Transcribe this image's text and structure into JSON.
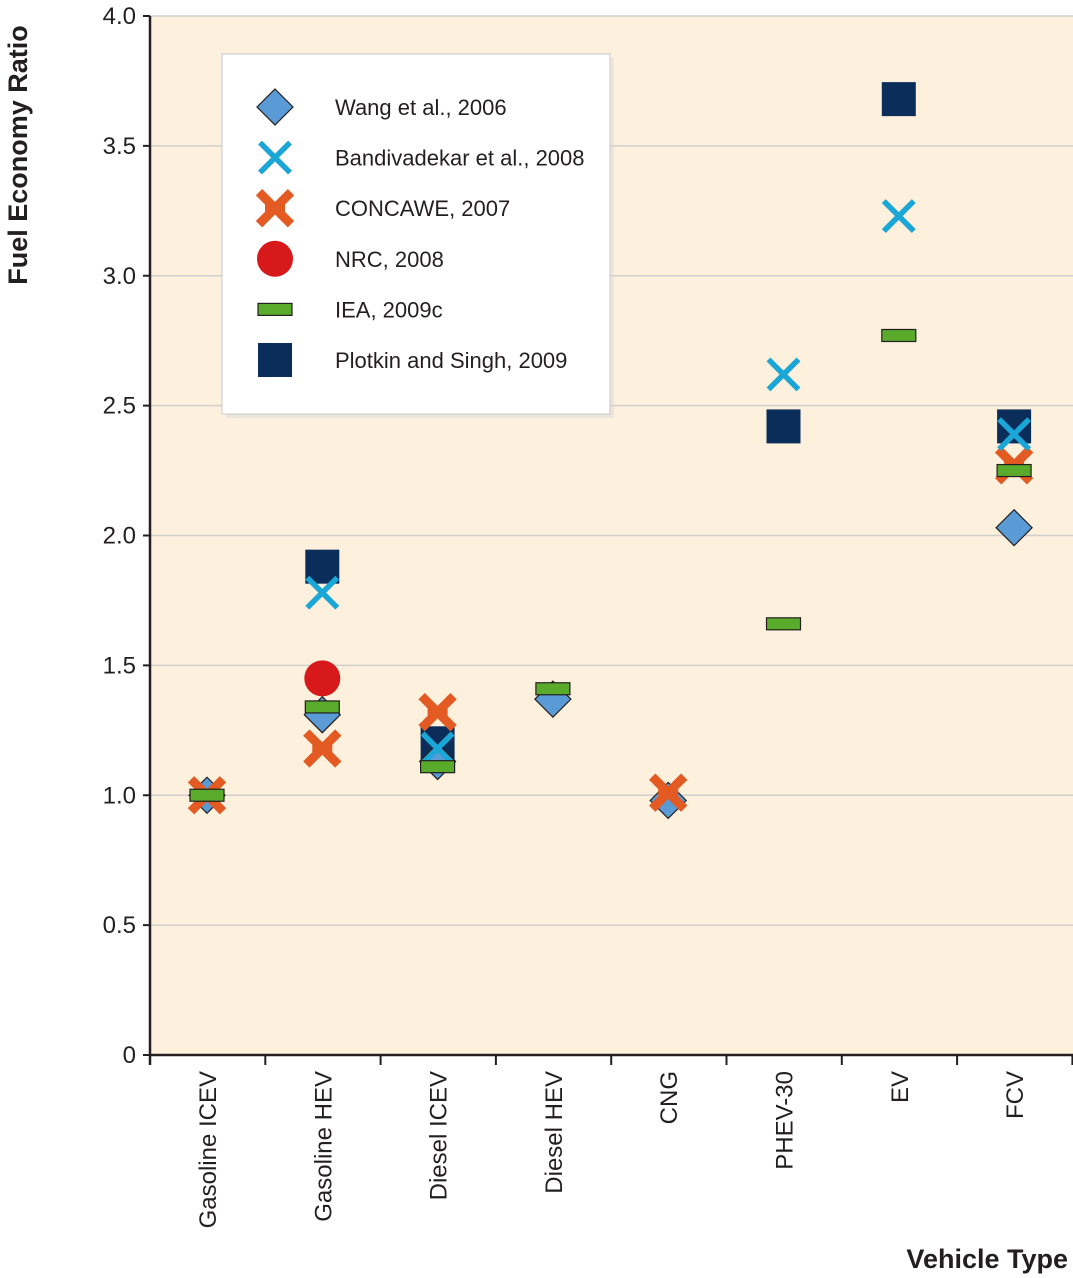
{
  "chart_data": {
    "type": "scatter",
    "title": "",
    "xlabel": "Vehicle Type",
    "ylabel": "Fuel Economy Ratio",
    "ylim": [
      0,
      4.0
    ],
    "y_ticks": [
      0,
      0.5,
      1.0,
      1.5,
      2.0,
      2.5,
      3.0,
      3.5,
      4.0
    ],
    "y_tick_labels": [
      "0",
      "0.5",
      "1.0",
      "1.5",
      "2.0",
      "2.5",
      "3.0",
      "3.5",
      "4.0"
    ],
    "categories": [
      "Gasoline ICEV",
      "Gasoline HEV",
      "Diesel ICEV",
      "Diesel HEV",
      "CNG",
      "PHEV-30",
      "EV",
      "FCV"
    ],
    "grid": "horizontal",
    "legend_position": "top-left",
    "background_color": "#fdf0dc",
    "series": [
      {
        "name": "Wang et al., 2006",
        "marker": "diamond",
        "color": "#5b9bd5",
        "values": [
          1.0,
          1.31,
          1.13,
          1.37,
          0.98,
          null,
          null,
          2.03
        ]
      },
      {
        "name": "Bandivadekar et al., 2008",
        "marker": "x",
        "color": "#1aa6d6",
        "values": [
          null,
          1.78,
          1.18,
          null,
          null,
          2.62,
          3.23,
          2.39
        ]
      },
      {
        "name": "CONCAWE, 2007",
        "marker": "asterisk",
        "color": "#e35a22",
        "values": [
          1.0,
          1.18,
          1.32,
          null,
          1.01,
          null,
          null,
          2.27
        ]
      },
      {
        "name": "NRC, 2008",
        "marker": "circle",
        "color": "#d7191c",
        "values": [
          null,
          1.45,
          null,
          null,
          null,
          null,
          null,
          null
        ]
      },
      {
        "name": "IEA, 2009c",
        "marker": "dash",
        "color": "#5aaa2c",
        "values": [
          1.0,
          1.34,
          1.11,
          1.41,
          null,
          1.66,
          2.77,
          2.25
        ]
      },
      {
        "name": "Plotkin and Singh, 2009",
        "marker": "square",
        "color": "#0a2d5a",
        "values": [
          null,
          1.88,
          1.2,
          null,
          null,
          2.42,
          3.68,
          2.42
        ]
      }
    ]
  }
}
